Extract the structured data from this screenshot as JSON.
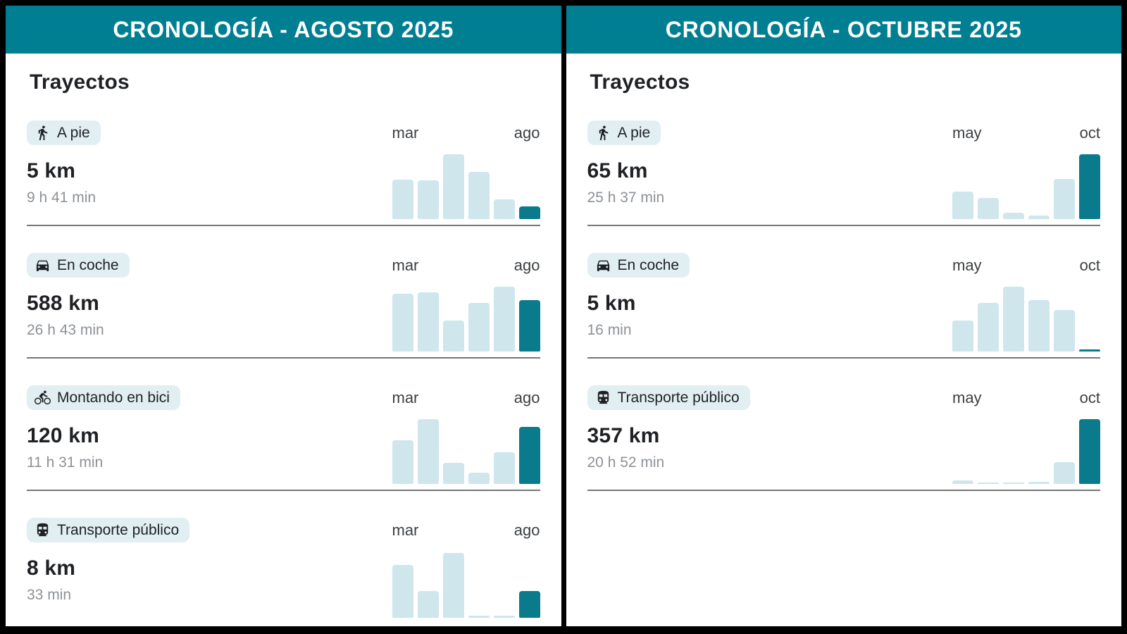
{
  "colors": {
    "header_bg": "#007E92",
    "bar_highlight": "#0A7A8D",
    "bar_normal": "#CFE6EC",
    "badge_bg": "#E1EFF3"
  },
  "panels": [
    {
      "title": "CRONOLOGÍA - AGOSTO 2025",
      "section_title": "Trayectos",
      "axis_start": "mar",
      "axis_end": "ago",
      "rows": [
        {
          "icon": "walk-icon",
          "mode": "A pie",
          "distance": "5 km",
          "duration": "9 h 41 min",
          "bars": [
            61,
            60,
            100,
            73,
            30,
            20
          ]
        },
        {
          "icon": "car-icon",
          "mode": "En coche",
          "distance": "588 km",
          "duration": "26 h 43 min",
          "bars": [
            89,
            91,
            48,
            75,
            100,
            79
          ]
        },
        {
          "icon": "bike-icon",
          "mode": "Montando en bici",
          "distance": "120 km",
          "duration": "11 h 31 min",
          "bars": [
            67,
            100,
            33,
            17,
            49,
            88
          ]
        },
        {
          "icon": "train-icon",
          "mode": "Transporte público",
          "distance": "8 km",
          "duration": "33 min",
          "bars": [
            81,
            41,
            100,
            3,
            3,
            41
          ]
        }
      ]
    },
    {
      "title": "CRONOLOGÍA - OCTUBRE 2025",
      "section_title": "Trayectos",
      "axis_start": "may",
      "axis_end": "oct",
      "rows": [
        {
          "icon": "walk-icon",
          "mode": "A pie",
          "distance": "65 km",
          "duration": "25 h 37 min",
          "bars": [
            42,
            33,
            10,
            5,
            62,
            100
          ]
        },
        {
          "icon": "car-icon",
          "mode": "En coche",
          "distance": "5 km",
          "duration": "16 min",
          "bars": [
            48,
            75,
            100,
            79,
            64,
            3
          ]
        },
        {
          "icon": "train-icon",
          "mode": "Transporte público",
          "distance": "357 km",
          "duration": "20 h 52 min",
          "bars": [
            5,
            2,
            2,
            3,
            34,
            100
          ]
        }
      ]
    }
  ]
}
